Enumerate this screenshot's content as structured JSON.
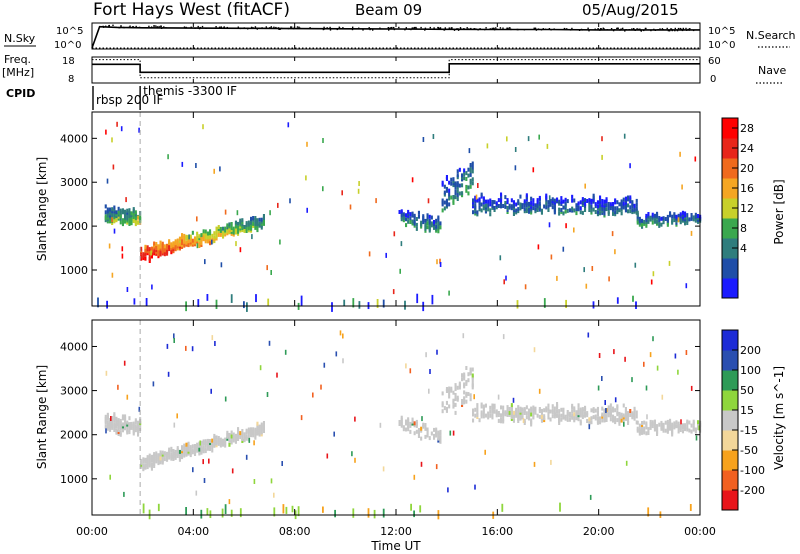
{
  "header": {
    "station": "Fort Hays West (fitACF)",
    "beam": "Beam 09",
    "date": "05/Aug/2015"
  },
  "strip_labels": {
    "nsky": "N.Sky",
    "freq": "Freq.",
    "freq_unit": "[MHz]",
    "cpid": "CPID",
    "nsearch": "N.Search",
    "nave": "Nave"
  },
  "strip_ticks": {
    "nsky_top": "10^5",
    "nsky_bottom": "10^0",
    "freq_top": "18",
    "freq_bottom": "8",
    "nsearch_top": "10^5",
    "nsearch_bottom": "10^0",
    "nave_top": "60",
    "nave_bottom": "0"
  },
  "cpid_labels": [
    {
      "text": "rbsp 200 IF",
      "start_hour": 0.0
    },
    {
      "text": "themis -3300 IF",
      "start_hour": 1.9
    }
  ],
  "colors": {
    "power": [
      "#1b1bff",
      "#1f4ea8",
      "#2f7d7d",
      "#3aa84e",
      "#c8d02a",
      "#f5a623",
      "#f06a1d",
      "#e8261a",
      "#ff0000"
    ],
    "velocity": [
      "#e8141a",
      "#f26020",
      "#f7a21c",
      "#f3d79a",
      "#c8c8c8",
      "#8fd63c",
      "#2e9b57",
      "#2a4fb0",
      "#1c2bd6"
    ],
    "dash": "#aaaaaa"
  },
  "chart_data": [
    {
      "type": "line",
      "panel": "nsky-nsearch",
      "series": [
        {
          "name": "N.Sky",
          "x": [
            0,
            0.3,
            1,
            2,
            4,
            6,
            8,
            10,
            12,
            14,
            16,
            18,
            20,
            22,
            24
          ],
          "y": [
            1,
            28000,
            20000,
            16000,
            14000,
            13000,
            11000,
            10000,
            9000,
            8000,
            7000,
            7000,
            6000,
            6000,
            6000
          ]
        },
        {
          "name": "N.Search",
          "x": [
            0,
            24
          ],
          "y": [
            1,
            1
          ]
        }
      ],
      "ylim": [
        1,
        100000
      ],
      "xlim": [
        0,
        24
      ]
    },
    {
      "type": "line",
      "panel": "freq-nave",
      "series": [
        {
          "name": "Freq",
          "x": [
            0,
            1.9,
            1.9,
            14.1,
            14.1,
            24
          ],
          "y": [
            15.2,
            15.2,
            12.1,
            12.1,
            15.4,
            15.4
          ]
        },
        {
          "name": "Nave",
          "x": [
            0,
            1.9,
            1.9,
            14.1,
            14.1,
            24
          ],
          "y": [
            17,
            17,
            10,
            10,
            17,
            17
          ]
        }
      ],
      "ylim": [
        8,
        18
      ],
      "y2lim": [
        0,
        60
      ],
      "xlim": [
        0,
        24
      ]
    },
    {
      "type": "heatmap",
      "panel": "power",
      "ylabel": "Slant Range [km]",
      "xlim": [
        0,
        24
      ],
      "ylim": [
        180,
        4600
      ],
      "yticks": [
        1000,
        2000,
        3000,
        4000
      ],
      "colorbar": {
        "label": "Power [dB]",
        "ticks": [
          "28",
          "24",
          "20",
          "16",
          "12",
          "8",
          "4"
        ],
        "range": [
          0,
          32
        ]
      },
      "bands": [
        {
          "x": [
            0.5,
            1.9
          ],
          "center": [
            2260,
            2200
          ],
          "width": 300,
          "level": [
            3,
            4
          ],
          "density": 0.85
        },
        {
          "x": [
            1.9,
            6.8
          ],
          "center": [
            1350,
            2150
          ],
          "width": 220,
          "level": [
            8,
            3
          ],
          "density": 0.9
        },
        {
          "x": [
            12.1,
            13.8
          ],
          "center": [
            2250,
            2000
          ],
          "width": 260,
          "level": [
            2,
            3
          ],
          "density": 0.6
        },
        {
          "x": [
            13.8,
            15.0
          ],
          "center": [
            2700,
            3200
          ],
          "width": 600,
          "level": [
            2,
            3
          ],
          "density": 0.35
        },
        {
          "x": [
            15.0,
            21.5
          ],
          "center": [
            2500,
            2450
          ],
          "width": 300,
          "level": [
            2,
            2
          ],
          "density": 0.55
        },
        {
          "x": [
            21.5,
            24.0
          ],
          "center": [
            2150,
            2200
          ],
          "width": 200,
          "level": [
            3,
            2
          ],
          "density": 0.75
        }
      ],
      "ground_scatter": {
        "range": [
          180,
          400
        ],
        "density": 0.12
      }
    },
    {
      "type": "heatmap",
      "panel": "velocity",
      "xlabel": "Time UT",
      "ylabel": "Slant Range [km]",
      "xlim": [
        0,
        24
      ],
      "ylim": [
        180,
        4600
      ],
      "xticks": [
        "00:00",
        "04:00",
        "08:00",
        "12:00",
        "16:00",
        "20:00",
        "00:00"
      ],
      "yticks": [
        1000,
        2000,
        3000,
        4000
      ],
      "colorbar": {
        "label": "Velocity [m s^-1]",
        "ticks": [
          "200",
          "100",
          "50",
          "15",
          "-15",
          "-50",
          "-100",
          "-200"
        ],
        "range": [
          -250,
          250
        ]
      },
      "bands": [
        {
          "x": [
            0.5,
            1.9
          ],
          "center": [
            2260,
            2200
          ],
          "width": 300,
          "level": [
            4,
            4
          ],
          "density": 0.85
        },
        {
          "x": [
            1.9,
            6.8
          ],
          "center": [
            1350,
            2150
          ],
          "width": 220,
          "level": [
            4,
            4
          ],
          "density": 0.9
        },
        {
          "x": [
            12.1,
            13.8
          ],
          "center": [
            2250,
            2000
          ],
          "width": 260,
          "level": [
            4,
            4
          ],
          "density": 0.6
        },
        {
          "x": [
            13.8,
            15.0
          ],
          "center": [
            2700,
            3200
          ],
          "width": 600,
          "level": [
            4,
            4
          ],
          "density": 0.35
        },
        {
          "x": [
            15.0,
            21.5
          ],
          "center": [
            2500,
            2450
          ],
          "width": 300,
          "level": [
            4,
            4
          ],
          "density": 0.55
        },
        {
          "x": [
            21.5,
            24.0
          ],
          "center": [
            2150,
            2200
          ],
          "width": 200,
          "level": [
            4,
            4
          ],
          "density": 0.75
        }
      ],
      "ground_scatter": {
        "range": [
          180,
          400
        ],
        "density": 0.12
      }
    }
  ]
}
